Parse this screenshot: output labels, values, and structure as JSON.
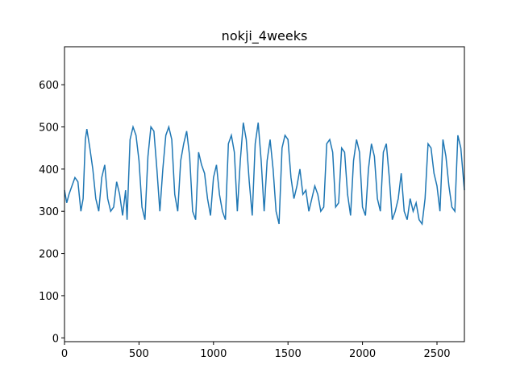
{
  "chart_data": {
    "type": "line",
    "title": "nokji_4weeks",
    "x": [
      0,
      15,
      30,
      50,
      70,
      90,
      110,
      125,
      140,
      150,
      170,
      190,
      210,
      230,
      250,
      270,
      290,
      310,
      330,
      350,
      370,
      390,
      410,
      420,
      440,
      460,
      480,
      500,
      520,
      540,
      560,
      580,
      600,
      620,
      640,
      660,
      680,
      700,
      720,
      740,
      760,
      780,
      800,
      820,
      840,
      860,
      880,
      900,
      920,
      940,
      960,
      980,
      1000,
      1020,
      1040,
      1060,
      1080,
      1100,
      1120,
      1140,
      1160,
      1180,
      1200,
      1220,
      1240,
      1260,
      1280,
      1300,
      1320,
      1340,
      1360,
      1380,
      1400,
      1420,
      1440,
      1460,
      1480,
      1500,
      1520,
      1540,
      1560,
      1580,
      1600,
      1620,
      1640,
      1660,
      1680,
      1700,
      1720,
      1740,
      1760,
      1780,
      1800,
      1820,
      1840,
      1860,
      1880,
      1900,
      1920,
      1940,
      1960,
      1980,
      2000,
      2020,
      2040,
      2060,
      2080,
      2100,
      2120,
      2140,
      2160,
      2180,
      2200,
      2220,
      2240,
      2260,
      2280,
      2300,
      2320,
      2340,
      2360,
      2380,
      2400,
      2420,
      2440,
      2460,
      2480,
      2500,
      2520,
      2540,
      2560,
      2580,
      2600,
      2620,
      2640,
      2660,
      2684
    ],
    "series": [
      {
        "color": "#1f77b4",
        "values": [
          350,
          320,
          340,
          360,
          380,
          370,
          300,
          330,
          470,
          495,
          450,
          400,
          330,
          300,
          380,
          410,
          330,
          300,
          310,
          370,
          340,
          290,
          350,
          280,
          470,
          500,
          480,
          420,
          310,
          280,
          430,
          500,
          490,
          400,
          300,
          400,
          480,
          500,
          470,
          340,
          300,
          420,
          460,
          490,
          430,
          300,
          280,
          440,
          410,
          390,
          330,
          290,
          380,
          410,
          340,
          300,
          280,
          460,
          480,
          440,
          300,
          420,
          510,
          470,
          370,
          290,
          460,
          510,
          420,
          300,
          420,
          470,
          400,
          300,
          270,
          450,
          480,
          470,
          380,
          330,
          360,
          400,
          340,
          350,
          300,
          330,
          360,
          340,
          300,
          310,
          460,
          470,
          440,
          310,
          320,
          450,
          440,
          340,
          290,
          420,
          470,
          440,
          310,
          290,
          400,
          460,
          430,
          330,
          300,
          440,
          460,
          380,
          280,
          300,
          330,
          390,
          300,
          280,
          330,
          300,
          320,
          280,
          270,
          330,
          460,
          450,
          390,
          360,
          300,
          470,
          430,
          360,
          310,
          300,
          480,
          450,
          350
        ]
      }
    ],
    "xlim": [
      0,
      2684
    ],
    "ylim": [
      -9,
      690
    ],
    "xticks": [
      0,
      500,
      1000,
      1500,
      2000,
      2500
    ],
    "yticks": [
      0,
      100,
      200,
      300,
      400,
      500,
      600
    ]
  }
}
